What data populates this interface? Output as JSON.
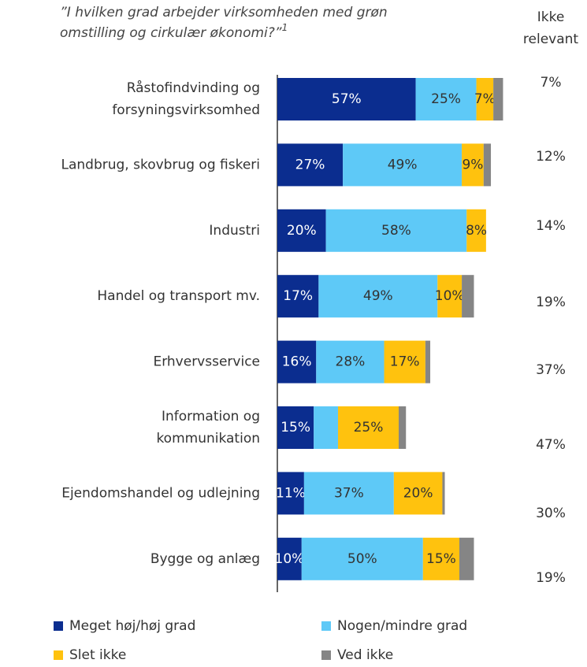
{
  "chart_data": {
    "type": "stacked-bar-horizontal",
    "title_lines": [
      "”I hvilken grad arbejder virksomheden med grøn",
      "omstilling og cirkulær økonomi?”"
    ],
    "title_footnote": "1",
    "categories": [
      [
        "Råstofindvinding og",
        "forsyningsvirksomhed"
      ],
      [
        "Landbrug, skovbrug og fiskeri"
      ],
      [
        "Industri"
      ],
      [
        "Handel og transport mv."
      ],
      [
        "Erhvervsservice"
      ],
      [
        "Information og",
        "kommunikation"
      ],
      [
        "Ejendomshandel og udlejning"
      ],
      [
        "Bygge og anlæg"
      ]
    ],
    "xlim": [
      0,
      100
    ],
    "series": [
      {
        "name": "Meget høj/høj grad",
        "color": "#0b2d8f",
        "values": [
          57,
          27,
          20,
          17,
          16,
          15,
          11,
          10
        ],
        "value_labels": [
          "57%",
          "27%",
          "20%",
          "17%",
          "16%",
          "15%",
          "11%",
          "10%"
        ]
      },
      {
        "name": "Nogen/mindre grad",
        "color": "#5ec9f7",
        "values": [
          25,
          49,
          58,
          49,
          28,
          10,
          37,
          50
        ],
        "value_labels": [
          "25%",
          "49%",
          "58%",
          "49%",
          "28%",
          null,
          "37%",
          "50%"
        ]
      },
      {
        "name": "Slet ikke",
        "color": "#ffc20e",
        "values": [
          7,
          9,
          8,
          10,
          17,
          25,
          20,
          15
        ],
        "value_labels": [
          "7%",
          "9%",
          "8%",
          "10%",
          "17%",
          "25%",
          "20%",
          "15%"
        ]
      },
      {
        "name": "Ved ikke",
        "color": "#858585",
        "values": [
          4,
          3,
          0,
          5,
          2,
          3,
          1,
          6
        ]
      }
    ],
    "not_relevant": {
      "header_lines": [
        "Ikke",
        "relevant"
      ],
      "values": [
        7,
        12,
        14,
        19,
        37,
        47,
        30,
        19
      ],
      "value_labels": [
        "7%",
        "12%",
        "14%",
        "19%",
        "37%",
        "47%",
        "30%",
        "19%"
      ]
    }
  }
}
